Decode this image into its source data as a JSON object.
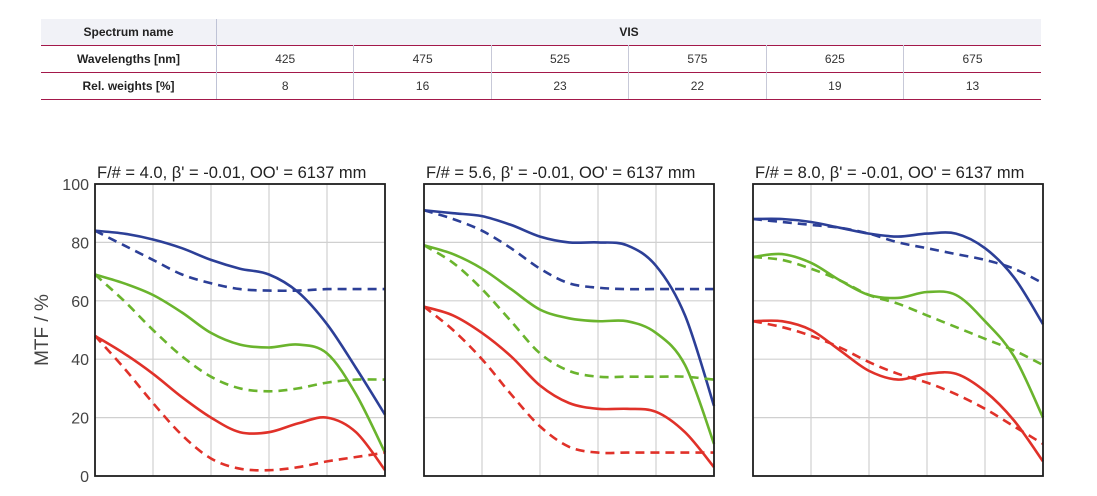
{
  "spectrum": {
    "header_label": "Spectrum name",
    "header_value": "VIS",
    "wavelength_label": "Wavelengths [nm]",
    "wavelengths": [
      "425",
      "475",
      "525",
      "575",
      "625",
      "675"
    ],
    "weight_label": "Rel. weights [%]",
    "weights": [
      "8",
      "16",
      "23",
      "22",
      "19",
      "13"
    ]
  },
  "chart_data": {
    "type": "line",
    "ylabel": "MTF / %",
    "ylim": [
      0,
      100
    ],
    "yticks": [
      0,
      20,
      40,
      60,
      80,
      100
    ],
    "grid": true,
    "xlim": [
      0,
      1
    ],
    "colors": {
      "blue": "#2c3f97",
      "green": "#6ab42d",
      "red": "#e03129"
    },
    "panels": [
      {
        "title": "F/# = 4.0, β' = -0.01, OO' = 6137 mm",
        "series": [
          {
            "color": "blue",
            "style": "solid",
            "x": [
              0,
              0.1,
              0.2,
              0.3,
              0.4,
              0.5,
              0.6,
              0.7,
              0.8,
              0.9,
              1.0
            ],
            "y": [
              84,
              83,
              81,
              78,
              74,
              71,
              69,
              63,
              52,
              37,
              21
            ]
          },
          {
            "color": "blue",
            "style": "dashed",
            "x": [
              0,
              0.1,
              0.2,
              0.3,
              0.4,
              0.5,
              0.6,
              0.7,
              0.8,
              0.9,
              1.0
            ],
            "y": [
              84,
              79,
              74,
              69,
              66,
              64,
              63.5,
              63.5,
              64,
              64,
              64
            ]
          },
          {
            "color": "green",
            "style": "solid",
            "x": [
              0,
              0.1,
              0.2,
              0.3,
              0.4,
              0.5,
              0.6,
              0.7,
              0.8,
              0.9,
              1.0
            ],
            "y": [
              69,
              66,
              62,
              56,
              49,
              45,
              44,
              45,
              42,
              28,
              8
            ]
          },
          {
            "color": "green",
            "style": "dashed",
            "x": [
              0,
              0.1,
              0.2,
              0.3,
              0.4,
              0.5,
              0.6,
              0.7,
              0.8,
              0.9,
              1.0
            ],
            "y": [
              69,
              60,
              50,
              41,
              34,
              30,
              29,
              30,
              32,
              33,
              33
            ]
          },
          {
            "color": "red",
            "style": "solid",
            "x": [
              0,
              0.1,
              0.2,
              0.3,
              0.4,
              0.5,
              0.6,
              0.7,
              0.8,
              0.9,
              1.0
            ],
            "y": [
              48,
              42,
              35,
              27,
              20,
              15,
              15,
              18,
              20,
              15,
              2
            ]
          },
          {
            "color": "red",
            "style": "dashed",
            "x": [
              0,
              0.1,
              0.2,
              0.3,
              0.4,
              0.5,
              0.6,
              0.7,
              0.8,
              0.9,
              1.0
            ],
            "y": [
              48,
              37,
              25,
              14,
              6,
              2.5,
              2,
              3,
              5,
              6.5,
              8
            ]
          }
        ]
      },
      {
        "title": "F/# = 5.6, β' = -0.01, OO' = 6137 mm",
        "series": [
          {
            "color": "blue",
            "style": "solid",
            "x": [
              0,
              0.1,
              0.2,
              0.3,
              0.4,
              0.5,
              0.6,
              0.7,
              0.8,
              0.9,
              1.0
            ],
            "y": [
              91,
              90,
              89,
              86,
              82,
              80,
              80,
              79,
              72,
              55,
              24
            ]
          },
          {
            "color": "blue",
            "style": "dashed",
            "x": [
              0,
              0.1,
              0.2,
              0.3,
              0.4,
              0.5,
              0.6,
              0.7,
              0.8,
              0.9,
              1.0
            ],
            "y": [
              91,
              88,
              84,
              78,
              71,
              66,
              64.5,
              64,
              64,
              64,
              64
            ]
          },
          {
            "color": "green",
            "style": "solid",
            "x": [
              0,
              0.1,
              0.2,
              0.3,
              0.4,
              0.5,
              0.6,
              0.7,
              0.8,
              0.9,
              1.0
            ],
            "y": [
              79,
              76,
              71,
              64,
              57,
              54,
              53,
              53,
              49,
              38,
              11
            ]
          },
          {
            "color": "green",
            "style": "dashed",
            "x": [
              0,
              0.1,
              0.2,
              0.3,
              0.4,
              0.5,
              0.6,
              0.7,
              0.8,
              0.9,
              1.0
            ],
            "y": [
              79,
              73,
              64,
              53,
              42,
              36,
              34,
              34,
              34,
              34,
              33
            ]
          },
          {
            "color": "red",
            "style": "solid",
            "x": [
              0,
              0.1,
              0.2,
              0.3,
              0.4,
              0.5,
              0.6,
              0.7,
              0.8,
              0.9,
              1.0
            ],
            "y": [
              58,
              55,
              49,
              41,
              31,
              25,
              23,
              23,
              22,
              15,
              3
            ]
          },
          {
            "color": "red",
            "style": "dashed",
            "x": [
              0,
              0.1,
              0.2,
              0.3,
              0.4,
              0.5,
              0.6,
              0.7,
              0.8,
              0.9,
              1.0
            ],
            "y": [
              58,
              50,
              40,
              28,
              17,
              10,
              8,
              8,
              8,
              8,
              8
            ]
          }
        ]
      },
      {
        "title": "F/# = 8.0, β' = -0.01, OO' = 6137 mm",
        "series": [
          {
            "color": "blue",
            "style": "solid",
            "x": [
              0,
              0.1,
              0.2,
              0.3,
              0.4,
              0.5,
              0.6,
              0.7,
              0.8,
              0.9,
              1.0
            ],
            "y": [
              88,
              88,
              87,
              85,
              83,
              82,
              83,
              83,
              78,
              68,
              52
            ]
          },
          {
            "color": "blue",
            "style": "dashed",
            "x": [
              0,
              0.1,
              0.2,
              0.3,
              0.4,
              0.5,
              0.6,
              0.7,
              0.8,
              0.9,
              1.0
            ],
            "y": [
              88,
              87,
              86,
              85,
              83,
              80,
              78,
              76,
              74,
              71,
              66
            ]
          },
          {
            "color": "green",
            "style": "solid",
            "x": [
              0,
              0.1,
              0.2,
              0.3,
              0.4,
              0.5,
              0.6,
              0.7,
              0.8,
              0.9,
              1.0
            ],
            "y": [
              75,
              76,
              73,
              67,
              62,
              61,
              63,
              62,
              53,
              41,
              20
            ]
          },
          {
            "color": "green",
            "style": "dashed",
            "x": [
              0,
              0.1,
              0.2,
              0.3,
              0.4,
              0.5,
              0.6,
              0.7,
              0.8,
              0.9,
              1.0
            ],
            "y": [
              75,
              74,
              71,
              67,
              62,
              59,
              55,
              51,
              47,
              43,
              38
            ]
          },
          {
            "color": "red",
            "style": "solid",
            "x": [
              0,
              0.1,
              0.2,
              0.3,
              0.4,
              0.5,
              0.6,
              0.7,
              0.8,
              0.9,
              1.0
            ],
            "y": [
              53,
              53,
              50,
              43,
              36,
              33,
              35,
              35,
              29,
              19,
              5
            ]
          },
          {
            "color": "red",
            "style": "dashed",
            "x": [
              0,
              0.1,
              0.2,
              0.3,
              0.4,
              0.5,
              0.6,
              0.7,
              0.8,
              0.9,
              1.0
            ],
            "y": [
              53,
              51,
              48,
              44,
              39,
              35,
              32,
              28,
              23,
              17,
              11
            ]
          }
        ]
      }
    ]
  }
}
